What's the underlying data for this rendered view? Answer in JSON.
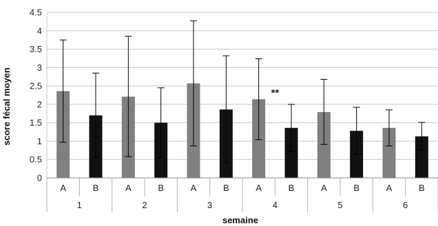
{
  "chart_data": {
    "type": "bar",
    "xlabel": "semaine",
    "ylabel": "score fécal moyen",
    "ylim": [
      0,
      4.5
    ],
    "yticks": [
      "0",
      "0.5",
      "1",
      "1.5",
      "2",
      "2.5",
      "3",
      "3.5",
      "4",
      "4.5"
    ],
    "grid": "horizontal",
    "groups": [
      "1",
      "2",
      "3",
      "4",
      "5",
      "6"
    ],
    "subcategories": [
      "A",
      "B"
    ],
    "series": [
      {
        "name": "A",
        "color": "#808080",
        "values": [
          2.36,
          2.21,
          2.57,
          2.14,
          1.79,
          1.36
        ],
        "error_low": [
          0.97,
          0.58,
          0.87,
          1.04,
          0.91,
          0.87
        ],
        "error_high": [
          3.75,
          3.85,
          4.27,
          3.24,
          2.68,
          1.85
        ]
      },
      {
        "name": "B",
        "color": "#111111",
        "values": [
          1.7,
          1.5,
          1.86,
          1.36,
          1.28,
          1.13
        ],
        "error_low": [
          0.56,
          0.56,
          0.41,
          0.72,
          0.64,
          0.76
        ],
        "error_high": [
          2.85,
          2.45,
          3.32,
          2.0,
          1.92,
          1.51
        ]
      }
    ],
    "annotations": [
      {
        "text": "**",
        "group": "4",
        "value": 2.3
      }
    ]
  }
}
